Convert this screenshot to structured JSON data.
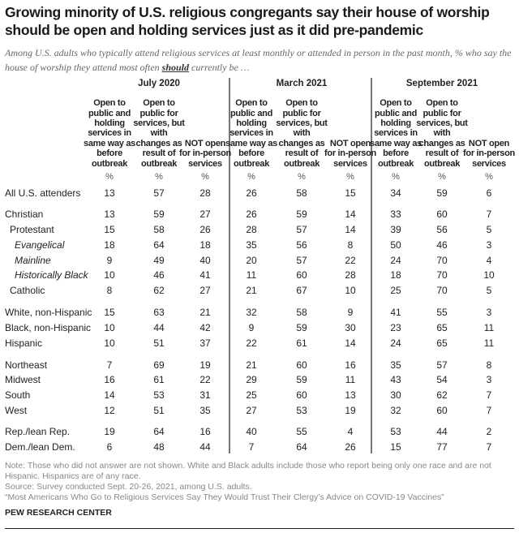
{
  "title": "Growing minority of U.S. religious congregants say their house of worship should be open and holding services just as it did pre-pandemic",
  "subtitle_part1": "Among U.S. adults who typically attend religious services at least monthly or attended in person in the past month, % who say the house of worship they attend most often ",
  "subtitle_emph": "should",
  "subtitle_part2": " currently be …",
  "chart_data": {
    "type": "table",
    "groups": [
      "July 2020",
      "March 2021",
      "September 2021"
    ],
    "columns": [
      "Open to public and holding services in same way as before outbreak",
      "Open to public for services, but with changes as result of outbreak",
      "NOT open for in-person services"
    ],
    "unit": "%",
    "rows": [
      {
        "label": "All U.S. attenders",
        "indent": 0,
        "italic": false,
        "values": [
          13,
          57,
          28,
          26,
          58,
          15,
          34,
          59,
          6
        ]
      },
      {
        "label": "Christian",
        "indent": 0,
        "italic": false,
        "values": [
          13,
          59,
          27,
          26,
          59,
          14,
          33,
          60,
          7
        ]
      },
      {
        "label": "Protestant",
        "indent": 1,
        "italic": false,
        "values": [
          15,
          58,
          26,
          28,
          57,
          14,
          39,
          56,
          5
        ]
      },
      {
        "label": "Evangelical",
        "indent": 2,
        "italic": true,
        "values": [
          18,
          64,
          18,
          35,
          56,
          8,
          50,
          46,
          3
        ]
      },
      {
        "label": "Mainline",
        "indent": 2,
        "italic": true,
        "values": [
          9,
          49,
          40,
          20,
          57,
          22,
          24,
          70,
          4
        ]
      },
      {
        "label": "Historically Black",
        "indent": 2,
        "italic": true,
        "values": [
          10,
          46,
          41,
          11,
          60,
          28,
          18,
          70,
          10
        ]
      },
      {
        "label": "Catholic",
        "indent": 1,
        "italic": false,
        "values": [
          8,
          62,
          27,
          21,
          67,
          10,
          25,
          70,
          5
        ]
      },
      {
        "label": "White, non-Hispanic",
        "indent": 0,
        "italic": false,
        "values": [
          15,
          63,
          21,
          32,
          58,
          9,
          41,
          55,
          3
        ]
      },
      {
        "label": "Black, non-Hispanic",
        "indent": 0,
        "italic": false,
        "values": [
          10,
          44,
          42,
          9,
          59,
          30,
          23,
          65,
          11
        ]
      },
      {
        "label": "Hispanic",
        "indent": 0,
        "italic": false,
        "values": [
          10,
          51,
          37,
          22,
          61,
          14,
          24,
          65,
          11
        ]
      },
      {
        "label": "Northeast",
        "indent": 0,
        "italic": false,
        "values": [
          7,
          69,
          19,
          21,
          60,
          16,
          35,
          57,
          8
        ]
      },
      {
        "label": "Midwest",
        "indent": 0,
        "italic": false,
        "values": [
          16,
          61,
          22,
          29,
          59,
          11,
          43,
          54,
          3
        ]
      },
      {
        "label": "South",
        "indent": 0,
        "italic": false,
        "values": [
          14,
          53,
          31,
          25,
          60,
          13,
          30,
          62,
          7
        ]
      },
      {
        "label": "West",
        "indent": 0,
        "italic": false,
        "values": [
          12,
          51,
          35,
          27,
          53,
          19,
          32,
          60,
          7
        ]
      },
      {
        "label": "Rep./lean Rep.",
        "indent": 0,
        "italic": false,
        "values": [
          19,
          64,
          16,
          40,
          55,
          4,
          53,
          44,
          2
        ]
      },
      {
        "label": "Dem./lean Dem.",
        "indent": 0,
        "italic": false,
        "values": [
          6,
          48,
          44,
          7,
          64,
          26,
          15,
          77,
          7
        ]
      }
    ]
  },
  "notes": {
    "note": "Note: Those who did not answer are not shown. White and Black adults include those who report being only one race and are not Hispanic. Hispanics are of any race.",
    "source": "Source: Survey conducted Sept. 20-26, 2021, among U.S. adults.",
    "report": "“Most Americans Who Go to Religious Services Say They Would Trust Their Clergy’s Advice on COVID-19 Vaccines”"
  },
  "brand": "PEW RESEARCH CENTER"
}
